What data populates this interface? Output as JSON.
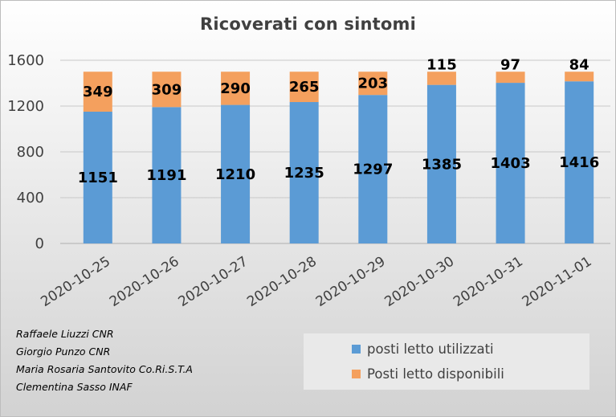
{
  "chart_data": {
    "type": "bar",
    "stacked": true,
    "title": "Ricoverati con sintomi",
    "xlabel": "",
    "ylabel": "",
    "categories": [
      "2020-10-25",
      "2020-10-26",
      "2020-10-27",
      "2020-10-28",
      "2020-10-29",
      "2020-10-30",
      "2020-10-31",
      "2020-11-01"
    ],
    "series": [
      {
        "name": "posti letto utilizzati",
        "color": "#5b9bd5",
        "values": [
          1151,
          1191,
          1210,
          1235,
          1297,
          1385,
          1403,
          1416
        ]
      },
      {
        "name": "Posti letto disponibili",
        "color": "#f4a05e",
        "values": [
          349,
          309,
          290,
          265,
          203,
          115,
          97,
          84
        ]
      }
    ],
    "ylim": [
      0,
      1600
    ],
    "yticks": [
      0,
      400,
      800,
      1200,
      1600
    ],
    "grid": true,
    "legend_position": "bottom-right"
  },
  "credits": [
    "Raffaele Liuzzi CNR",
    "Giorgio Punzo CNR",
    "Maria Rosaria Santovito Co.Ri.S.T.A",
    "Clementina Sasso INAF"
  ]
}
